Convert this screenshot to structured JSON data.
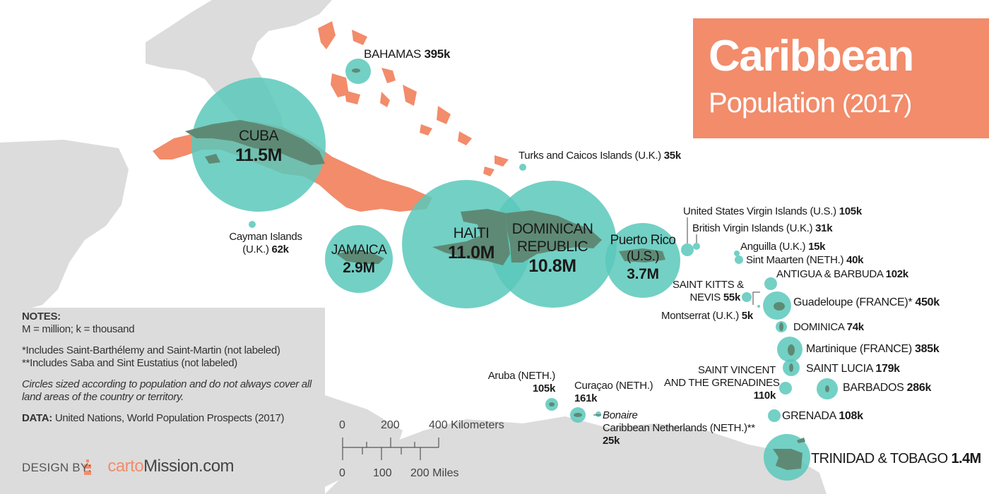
{
  "title": {
    "main": "Caribbean",
    "sub": "Population",
    "year": "(2017)"
  },
  "colors": {
    "circle": "#5ac8bb",
    "land_highlight": "#f28c6b",
    "land_base": "#dcdcdc",
    "island_dark": "#5e8a75",
    "title_bg": "#f28c6b"
  },
  "countries": [
    {
      "id": "cuba",
      "name": "CUBA",
      "value": "11.5M"
    },
    {
      "id": "haiti",
      "name": "HAITI",
      "value": "11.0M"
    },
    {
      "id": "dominican",
      "name": "DOMINICAN REPUBLIC",
      "name_line1": "DOMINICAN",
      "name_line2": "REPUBLIC",
      "value": "10.8M"
    },
    {
      "id": "puerto-rico",
      "name": "Puerto Rico (U.S.)",
      "name_line1": "Puerto Rico",
      "name_line2": "(U.S.)",
      "value": "3.7M"
    },
    {
      "id": "jamaica",
      "name": "JAMAICA",
      "value": "2.9M"
    },
    {
      "id": "trinidad",
      "name": "TRINIDAD & TOBAGO",
      "value": "1.4M"
    },
    {
      "id": "guadeloupe",
      "name": "Guadeloupe (FRANCE)*",
      "value": "450k"
    },
    {
      "id": "bahamas",
      "name": "BAHAMAS",
      "value": "395k"
    },
    {
      "id": "martinique",
      "name": "Martinique (FRANCE)",
      "value": "385k"
    },
    {
      "id": "barbados",
      "name": "BARBADOS",
      "value": "286k"
    },
    {
      "id": "saint-lucia",
      "name": "SAINT LUCIA",
      "value": "179k"
    },
    {
      "id": "curacao",
      "name": "Curaçao (NETH.)",
      "value": "161k"
    },
    {
      "id": "svg",
      "name": "SAINT VINCENT AND THE GRENADINES",
      "name_line1": "SAINT VINCENT",
      "name_line2": "AND THE GRENADINES",
      "value": "110k"
    },
    {
      "id": "grenada",
      "name": "GRENADA",
      "value": "108k"
    },
    {
      "id": "usvi",
      "name": "United States Virgin Islands (U.S.)",
      "value": "105k"
    },
    {
      "id": "aruba",
      "name": "Aruba (NETH.)",
      "value": "105k"
    },
    {
      "id": "antigua",
      "name": "ANTIGUA & BARBUDA",
      "value": "102k"
    },
    {
      "id": "dominica",
      "name": "DOMINICA",
      "value": "74k"
    },
    {
      "id": "cayman",
      "name": "Cayman Islands (U.K.)",
      "name_line1": "Cayman Islands",
      "name_line2": "(U.K.)",
      "value": "62k"
    },
    {
      "id": "st-kitts",
      "name": "SAINT KITTS & NEVIS",
      "name_line1": "SAINT KITTS &",
      "name_line2": "NEVIS",
      "value": "55k"
    },
    {
      "id": "sint-maarten",
      "name": "Sint Maarten (NETH.)",
      "value": "40k"
    },
    {
      "id": "turks",
      "name": "Turks and Caicos Islands (U.K.)",
      "value": "35k"
    },
    {
      "id": "bvi",
      "name": "British Virgin Islands (U.K.)",
      "value": "31k"
    },
    {
      "id": "bonaire",
      "name": "Caribbean Netherlands (NETH.)**",
      "sub_name": "Bonaire",
      "value": "25k"
    },
    {
      "id": "anguilla",
      "name": "Anguilla (U.K.)",
      "value": "15k"
    },
    {
      "id": "montserrat",
      "name": "Montserrat (U.K.)",
      "value": "5k"
    }
  ],
  "notes": {
    "heading": "NOTES:",
    "units": "M = million; k = thousand",
    "footnote1": "*Includes Saint-Barthélemy and Saint-Martin (not labeled)",
    "footnote2": "**Includes Saba and Sint Eustatius (not labeled)",
    "circles": "Circles sized according to population and do not always cover all land areas of the country or territory.",
    "data_label": "DATA:",
    "data_source": "United Nations, World Population Prospects (2017)"
  },
  "design": {
    "label": "DESIGN BY:",
    "brand_accent": "carto",
    "brand_rest": "Mission.com"
  },
  "scale": {
    "km_ticks": [
      "0",
      "200",
      "400 Kilometers"
    ],
    "mi_ticks": [
      "0",
      "100",
      "200 Miles"
    ]
  }
}
